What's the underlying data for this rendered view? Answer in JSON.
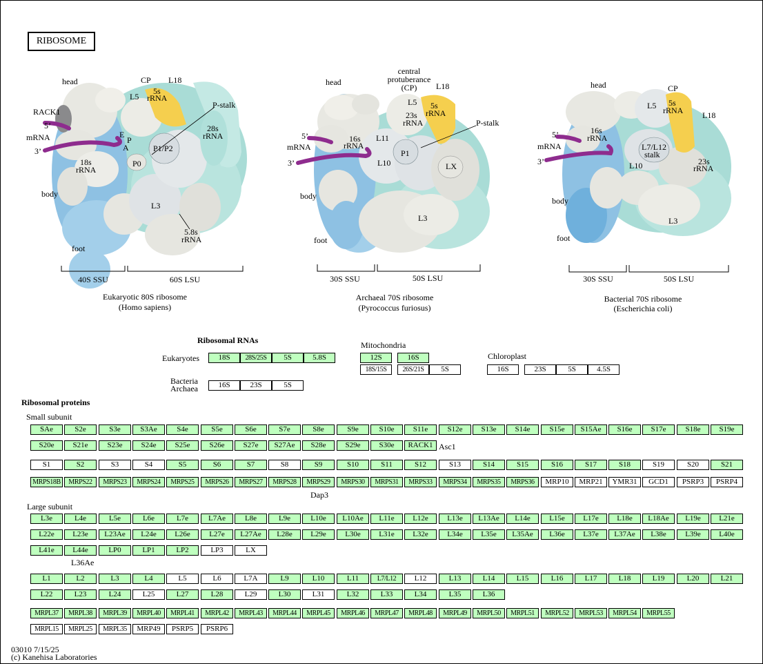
{
  "title": "RIBOSOME",
  "diagrams": {
    "eukaryotic": {
      "caption1": "Eukaryotic 80S ribosome",
      "caption2": "(Homo sapiens)",
      "ssu": "40S SSU",
      "lsu": "60S LSU",
      "labels": {
        "head": "head",
        "body": "body",
        "foot": "foot",
        "cp": "CP",
        "l5": "L5",
        "l18": "L18",
        "rrna5s_a": "5s",
        "rrna5s_b": "rRNA",
        "pstalk": "P-stalk",
        "rrna28_a": "28s",
        "rrna28_b": "rRNA",
        "rack1": "RACK1",
        "five": "5’",
        "mrna": "mRNA",
        "three": "3’",
        "e": "E",
        "p": "P",
        "a": "A",
        "p1p2": "P1/P2",
        "p0": "P0",
        "rrna18_a": "18s",
        "rrna18_b": "rRNA",
        "l3": "L3",
        "rrna58_a": "5.8s",
        "rrna58_b": "rRNA"
      }
    },
    "archaeal": {
      "caption1": "Archaeal 70S ribosome",
      "caption2": "(Pyrococcus furiosus)",
      "ssu": "30S SSU",
      "lsu": "50S LSU",
      "labels": {
        "head": "head",
        "cp_a": "central",
        "cp_b": "protuberance",
        "cp_c": "(CP)",
        "l18": "L18",
        "l5": "L5",
        "rrna5s_a": "5s",
        "rrna5s_b": "rRNA",
        "rrna23_a": "23s",
        "rrna23_b": "rRNA",
        "pstalk": "P-stalk",
        "five": "5’",
        "mrna": "mRNA",
        "three": "3’",
        "rrna16_a": "16s",
        "rrna16_b": "rRNA",
        "l11": "L11",
        "p1": "P1",
        "l10": "L10",
        "lx": "LX",
        "body": "body",
        "foot": "foot",
        "l3": "L3"
      }
    },
    "bacterial": {
      "caption1": "Bacterial 70S ribosome",
      "caption2": "(Escherichia coli)",
      "ssu": "30S SSU",
      "lsu": "50S LSU",
      "labels": {
        "head": "head",
        "cp": "CP",
        "l5": "L5",
        "rrna5s_a": "5s",
        "rrna5s_b": "rRNA",
        "l18": "L18",
        "five": "5’",
        "mrna": "mRNA",
        "three": "3’",
        "rrna16_a": "16s",
        "rrna16_b": "rRNA",
        "l7l12_a": "L7/L12",
        "l7l12_b": "stalk",
        "l10": "L10",
        "rrna23_a": "23s",
        "rrna23_b": "rRNA",
        "body": "body",
        "foot": "foot",
        "l3": "L3"
      }
    }
  },
  "ribosomal_rnas": {
    "heading": "Ribosomal RNAs",
    "eukaryotes_label": "Eukaryotes",
    "bacteria_label": "Bacteria",
    "archaea_label": "Archaea",
    "mitochondria_label": "Mitochondria",
    "chloroplast_label": "Chloroplast",
    "eukaryotes": [
      {
        "t": "18S",
        "c": "g"
      },
      {
        "t": "28S/25S",
        "c": "g"
      },
      {
        "t": "5S",
        "c": "g"
      },
      {
        "t": "5.8S",
        "c": "g"
      }
    ],
    "bacteria_archaea": [
      {
        "t": "16S",
        "c": "w"
      },
      {
        "t": "23S",
        "c": "w"
      },
      {
        "t": "5S",
        "c": "w"
      }
    ],
    "mito_row1": [
      {
        "t": "12S",
        "c": "g"
      },
      {
        "t": "16S",
        "c": "g"
      }
    ],
    "mito_row2": [
      {
        "t": "18S/15S",
        "c": "w"
      },
      {
        "t": "26S/21S",
        "c": "w"
      },
      {
        "t": "5S",
        "c": "w"
      }
    ],
    "chloroplast": [
      {
        "t": "16S",
        "c": "w"
      },
      {
        "t": "23S",
        "c": "w"
      },
      {
        "t": "5S",
        "c": "w"
      },
      {
        "t": "4.5S",
        "c": "w"
      }
    ]
  },
  "ribosomal_proteins": {
    "heading": "Ribosomal proteins",
    "small_subunit_label": "Small subunit",
    "large_subunit_label": "Large subunit",
    "notes": {
      "asc1": "Asc1",
      "dap3": "Dap3",
      "l36ae": "L36Ae"
    },
    "small_rows": [
      [
        {
          "t": "SAe",
          "c": "g"
        },
        {
          "t": "S2e",
          "c": "g"
        },
        {
          "t": "S3e",
          "c": "g"
        },
        {
          "t": "S3Ae",
          "c": "g"
        },
        {
          "t": "S4e",
          "c": "g"
        },
        {
          "t": "S5e",
          "c": "g"
        },
        {
          "t": "S6e",
          "c": "g"
        },
        {
          "t": "S7e",
          "c": "g"
        },
        {
          "t": "S8e",
          "c": "g"
        },
        {
          "t": "S9e",
          "c": "g"
        },
        {
          "t": "S10e",
          "c": "g"
        },
        {
          "t": "S11e",
          "c": "g"
        },
        {
          "t": "S12e",
          "c": "g"
        },
        {
          "t": "S13e",
          "c": "g"
        },
        {
          "t": "S14e",
          "c": "g"
        },
        {
          "t": "S15e",
          "c": "g"
        },
        {
          "t": "S15Ae",
          "c": "g"
        },
        {
          "t": "S16e",
          "c": "g"
        },
        {
          "t": "S17e",
          "c": "g"
        },
        {
          "t": "S18e",
          "c": "g"
        },
        {
          "t": "S19e",
          "c": "g"
        }
      ],
      [
        {
          "t": "S20e",
          "c": "g"
        },
        {
          "t": "S21e",
          "c": "g"
        },
        {
          "t": "S23e",
          "c": "g"
        },
        {
          "t": "S24e",
          "c": "g"
        },
        {
          "t": "S25e",
          "c": "g"
        },
        {
          "t": "S26e",
          "c": "g"
        },
        {
          "t": "S27e",
          "c": "g"
        },
        {
          "t": "S27Ae",
          "c": "g"
        },
        {
          "t": "S28e",
          "c": "g"
        },
        {
          "t": "S29e",
          "c": "g"
        },
        {
          "t": "S30e",
          "c": "g"
        },
        {
          "t": "RACK1",
          "c": "g"
        }
      ],
      [
        {
          "t": "S1",
          "c": "w"
        },
        {
          "t": "S2",
          "c": "g"
        },
        {
          "t": "S3",
          "c": "w"
        },
        {
          "t": "S4",
          "c": "w"
        },
        {
          "t": "S5",
          "c": "g"
        },
        {
          "t": "S6",
          "c": "g"
        },
        {
          "t": "S7",
          "c": "g"
        },
        {
          "t": "S8",
          "c": "w"
        },
        {
          "t": "S9",
          "c": "g"
        },
        {
          "t": "S10",
          "c": "g"
        },
        {
          "t": "S11",
          "c": "g"
        },
        {
          "t": "S12",
          "c": "g"
        },
        {
          "t": "S13",
          "c": "w"
        },
        {
          "t": "S14",
          "c": "g"
        },
        {
          "t": "S15",
          "c": "g"
        },
        {
          "t": "S16",
          "c": "g"
        },
        {
          "t": "S17",
          "c": "g"
        },
        {
          "t": "S18",
          "c": "g"
        },
        {
          "t": "S19",
          "c": "w"
        },
        {
          "t": "S20",
          "c": "w"
        },
        {
          "t": "S21",
          "c": "g"
        }
      ],
      [
        {
          "t": "MRPS18B",
          "c": "g"
        },
        {
          "t": "MRPS22",
          "c": "g"
        },
        {
          "t": "MRPS23",
          "c": "g"
        },
        {
          "t": "MRPS24",
          "c": "g"
        },
        {
          "t": "MRPS25",
          "c": "g"
        },
        {
          "t": "MRPS26",
          "c": "g"
        },
        {
          "t": "MRPS27",
          "c": "g"
        },
        {
          "t": "MRPS28",
          "c": "g"
        },
        {
          "t": "MRPS29",
          "c": "g"
        },
        {
          "t": "MRPS30",
          "c": "g"
        },
        {
          "t": "MRPS31",
          "c": "g"
        },
        {
          "t": "MRPS33",
          "c": "g"
        },
        {
          "t": "MRPS34",
          "c": "g"
        },
        {
          "t": "MRPS35",
          "c": "g"
        },
        {
          "t": "MRPS36",
          "c": "g"
        },
        {
          "t": "MRP10",
          "c": "w"
        },
        {
          "t": "MRP21",
          "c": "w"
        },
        {
          "t": "YMR31",
          "c": "w"
        },
        {
          "t": "GCD1",
          "c": "w"
        },
        {
          "t": "PSRP3",
          "c": "w"
        },
        {
          "t": "PSRP4",
          "c": "w"
        }
      ]
    ],
    "large_rows": [
      [
        {
          "t": "L3e",
          "c": "g"
        },
        {
          "t": "L4e",
          "c": "g"
        },
        {
          "t": "L5e",
          "c": "g"
        },
        {
          "t": "L6e",
          "c": "g"
        },
        {
          "t": "L7e",
          "c": "g"
        },
        {
          "t": "L7Ae",
          "c": "g"
        },
        {
          "t": "L8e",
          "c": "g"
        },
        {
          "t": "L9e",
          "c": "g"
        },
        {
          "t": "L10e",
          "c": "g"
        },
        {
          "t": "L10Ae",
          "c": "g"
        },
        {
          "t": "L11e",
          "c": "g"
        },
        {
          "t": "L12e",
          "c": "g"
        },
        {
          "t": "L13e",
          "c": "g"
        },
        {
          "t": "L13Ae",
          "c": "g"
        },
        {
          "t": "L14e",
          "c": "g"
        },
        {
          "t": "L15e",
          "c": "g"
        },
        {
          "t": "L17e",
          "c": "g"
        },
        {
          "t": "L18e",
          "c": "g"
        },
        {
          "t": "L18Ae",
          "c": "g"
        },
        {
          "t": "L19e",
          "c": "g"
        },
        {
          "t": "L21e",
          "c": "g"
        }
      ],
      [
        {
          "t": "L22e",
          "c": "g"
        },
        {
          "t": "L23e",
          "c": "g"
        },
        {
          "t": "L23Ae",
          "c": "g"
        },
        {
          "t": "L24e",
          "c": "g"
        },
        {
          "t": "L26e",
          "c": "g"
        },
        {
          "t": "L27e",
          "c": "g"
        },
        {
          "t": "L27Ae",
          "c": "g"
        },
        {
          "t": "L28e",
          "c": "g"
        },
        {
          "t": "L29e",
          "c": "g"
        },
        {
          "t": "L30e",
          "c": "g"
        },
        {
          "t": "L31e",
          "c": "g"
        },
        {
          "t": "L32e",
          "c": "g"
        },
        {
          "t": "L34e",
          "c": "g"
        },
        {
          "t": "L35e",
          "c": "g"
        },
        {
          "t": "L35Ae",
          "c": "g"
        },
        {
          "t": "L36e",
          "c": "g"
        },
        {
          "t": "L37e",
          "c": "g"
        },
        {
          "t": "L37Ae",
          "c": "g"
        },
        {
          "t": "L38e",
          "c": "g"
        },
        {
          "t": "L39e",
          "c": "g"
        },
        {
          "t": "L40e",
          "c": "g"
        }
      ],
      [
        {
          "t": "L41e",
          "c": "g"
        },
        {
          "t": "L44e",
          "c": "g"
        },
        {
          "t": "LP0",
          "c": "g"
        },
        {
          "t": "LP1",
          "c": "g"
        },
        {
          "t": "LP2",
          "c": "g"
        },
        {
          "t": "LP3",
          "c": "w"
        },
        {
          "t": "LX",
          "c": "w"
        }
      ],
      [
        {
          "t": "L1",
          "c": "g"
        },
        {
          "t": "L2",
          "c": "g"
        },
        {
          "t": "L3",
          "c": "g"
        },
        {
          "t": "L4",
          "c": "g"
        },
        {
          "t": "L5",
          "c": "w"
        },
        {
          "t": "L6",
          "c": "w"
        },
        {
          "t": "L7A",
          "c": "w"
        },
        {
          "t": "L9",
          "c": "g"
        },
        {
          "t": "L10",
          "c": "g"
        },
        {
          "t": "L11",
          "c": "g"
        },
        {
          "t": "L7/L12",
          "c": "g"
        },
        {
          "t": "L12",
          "c": "w"
        },
        {
          "t": "L13",
          "c": "g"
        },
        {
          "t": "L14",
          "c": "g"
        },
        {
          "t": "L15",
          "c": "g"
        },
        {
          "t": "L16",
          "c": "g"
        },
        {
          "t": "L17",
          "c": "g"
        },
        {
          "t": "L18",
          "c": "g"
        },
        {
          "t": "L19",
          "c": "g"
        },
        {
          "t": "L20",
          "c": "g"
        },
        {
          "t": "L21",
          "c": "g"
        }
      ],
      [
        {
          "t": "L22",
          "c": "g"
        },
        {
          "t": "L23",
          "c": "g"
        },
        {
          "t": "L24",
          "c": "g"
        },
        {
          "t": "L25",
          "c": "w"
        },
        {
          "t": "L27",
          "c": "g"
        },
        {
          "t": "L28",
          "c": "g"
        },
        {
          "t": "L29",
          "c": "w"
        },
        {
          "t": "L30",
          "c": "g"
        },
        {
          "t": "L31",
          "c": "w"
        },
        {
          "t": "L32",
          "c": "g"
        },
        {
          "t": "L33",
          "c": "g"
        },
        {
          "t": "L34",
          "c": "g"
        },
        {
          "t": "L35",
          "c": "g"
        },
        {
          "t": "L36",
          "c": "g"
        }
      ],
      [
        {
          "t": "MRPL37",
          "c": "g"
        },
        {
          "t": "MRPL38",
          "c": "g"
        },
        {
          "t": "MRPL39",
          "c": "g"
        },
        {
          "t": "MRPL40",
          "c": "g"
        },
        {
          "t": "MRPL41",
          "c": "g"
        },
        {
          "t": "MRPL42",
          "c": "g"
        },
        {
          "t": "MRPL43",
          "c": "g"
        },
        {
          "t": "MRPL44",
          "c": "g"
        },
        {
          "t": "MRPL45",
          "c": "g"
        },
        {
          "t": "MRPL46",
          "c": "g"
        },
        {
          "t": "MRPL47",
          "c": "g"
        },
        {
          "t": "MRPL48",
          "c": "g"
        },
        {
          "t": "MRPL49",
          "c": "g"
        },
        {
          "t": "MRPL50",
          "c": "g"
        },
        {
          "t": "MRPL51",
          "c": "g"
        },
        {
          "t": "MRPL52",
          "c": "g"
        },
        {
          "t": "MRPL53",
          "c": "g"
        },
        {
          "t": "MRPL54",
          "c": "g"
        },
        {
          "t": "MRPL55",
          "c": "g"
        }
      ],
      [
        {
          "t": "MRPL15",
          "c": "w"
        },
        {
          "t": "MRPL25",
          "c": "w"
        },
        {
          "t": "MRPL35",
          "c": "w"
        },
        {
          "t": "MRP49",
          "c": "w"
        },
        {
          "t": "PSRP5",
          "c": "w"
        },
        {
          "t": "PSRP6",
          "c": "w"
        }
      ]
    ]
  },
  "footer": {
    "line1": "03010 7/15/25",
    "line2": "(c) Kanehisa Laboratories"
  },
  "colors": {
    "found": "#bfffbf",
    "not_found": "#ffffff",
    "rrna_yellow": "#f5cf4e",
    "mrna": "#8e2c8e",
    "blue": "#8ec1e3",
    "teal": "#a9dcd6",
    "grey": "#e6e6e0"
  }
}
